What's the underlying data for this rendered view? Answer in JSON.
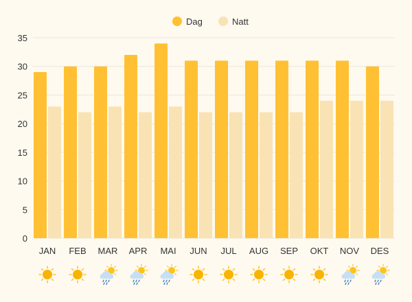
{
  "chart_data": {
    "type": "bar",
    "title": "",
    "xlabel": "",
    "ylabel": "",
    "ylim": [
      0,
      35
    ],
    "yticks": [
      0,
      5,
      10,
      15,
      20,
      25,
      30,
      35
    ],
    "grid": true,
    "legend_position": "top-center",
    "categories": [
      "JAN",
      "FEB",
      "MAR",
      "APR",
      "MAI",
      "JUN",
      "JUL",
      "AUG",
      "SEP",
      "OKT",
      "NOV",
      "DES"
    ],
    "series": [
      {
        "name": "Dag",
        "color": "#ffc133",
        "values": [
          29,
          30,
          30,
          32,
          34,
          31,
          31,
          31,
          31,
          31,
          31,
          30
        ]
      },
      {
        "name": "Natt",
        "color": "#f9e3b5",
        "values": [
          23,
          22,
          23,
          22,
          23,
          22,
          22,
          22,
          22,
          24,
          24,
          24
        ]
      }
    ],
    "weather_icons": [
      "sun-icon",
      "sun-icon",
      "rain-cloud-sun-icon",
      "rain-cloud-sun-icon",
      "rain-cloud-sun-icon",
      "sun-icon",
      "sun-icon",
      "sun-icon",
      "sun-icon",
      "sun-icon",
      "rain-cloud-sun-icon",
      "rain-cloud-sun-icon"
    ]
  }
}
